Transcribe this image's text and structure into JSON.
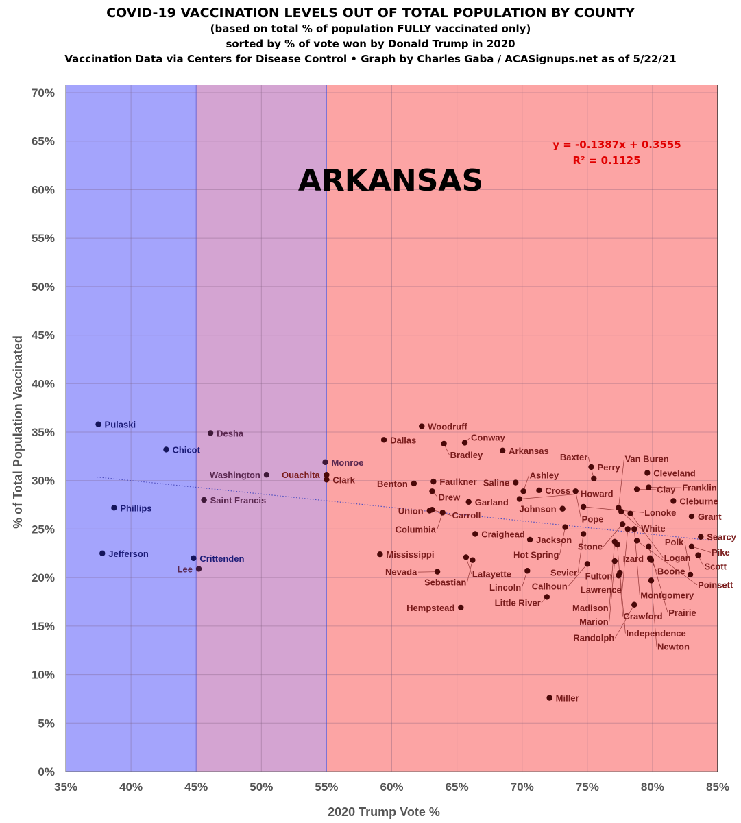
{
  "chart_data": {
    "type": "scatter",
    "title": "COVID-19 VACCINATION LEVELS OUT OF TOTAL POPULATION BY COUNTY",
    "subtitle_lines": [
      "(based on total % of population FULLY vaccinated only)",
      "sorted by % of vote won by Donald Trump in 2020",
      "Vaccination Data via Centers for Disease Control • Graph by Charles Gaba / ACASignups.net as of 5/22/21"
    ],
    "annotation": "ARKANSAS",
    "trendline": {
      "equation": "y = -0.1387x + 0.3555",
      "r2": "R² = 0.1125",
      "slope": -0.1387,
      "intercept": 0.3555,
      "style": "dotted"
    },
    "xlabel": "2020 Trump Vote %",
    "ylabel": "% of Total Population Vaccinated",
    "xlim": [
      35,
      85
    ],
    "ylim": [
      0,
      70
    ],
    "xticks": [
      "35%",
      "40%",
      "45%",
      "50%",
      "55%",
      "60%",
      "65%",
      "70%",
      "75%",
      "80%",
      "85%"
    ],
    "yticks": [
      "0%",
      "5%",
      "10%",
      "15%",
      "20%",
      "25%",
      "30%",
      "35%",
      "40%",
      "45%",
      "50%",
      "55%",
      "60%",
      "65%",
      "70%"
    ],
    "grid": true,
    "bands": [
      {
        "from": 35,
        "to": 45,
        "color": "#a4a4fc"
      },
      {
        "from": 45,
        "to": 55,
        "color": "#d4a4d2"
      },
      {
        "from": 55,
        "to": 85,
        "color": "#fca4a4"
      }
    ],
    "colors": {
      "blue_label": "#1c1c78",
      "purple_label": "#5a2850",
      "red_label": "#7a1c1c",
      "equation": "#e00000"
    },
    "points": [
      {
        "name": "Pulaski",
        "x": 37.5,
        "y": 35.8
      },
      {
        "name": "Chicot",
        "x": 42.7,
        "y": 33.2
      },
      {
        "name": "Desha",
        "x": 46.1,
        "y": 34.9
      },
      {
        "name": "Phillips",
        "x": 38.7,
        "y": 27.2
      },
      {
        "name": "Jefferson",
        "x": 37.8,
        "y": 22.5
      },
      {
        "name": "Saint Francis",
        "x": 45.6,
        "y": 28.0
      },
      {
        "name": "Crittenden",
        "x": 44.8,
        "y": 22.0
      },
      {
        "name": "Lee",
        "x": 45.2,
        "y": 20.9
      },
      {
        "name": "Washington",
        "x": 50.4,
        "y": 30.6
      },
      {
        "name": "Monroe",
        "x": 54.9,
        "y": 31.9
      },
      {
        "name": "Ouachita",
        "x": 55.0,
        "y": 30.6
      },
      {
        "name": "Clark",
        "x": 55.0,
        "y": 30.1
      },
      {
        "name": "Woodruff",
        "x": 62.3,
        "y": 35.6
      },
      {
        "name": "Dallas",
        "x": 59.4,
        "y": 34.2
      },
      {
        "name": "Bradley",
        "x": 64.0,
        "y": 33.8
      },
      {
        "name": "Conway",
        "x": 65.6,
        "y": 33.9
      },
      {
        "name": "Arkansas",
        "x": 68.5,
        "y": 33.1
      },
      {
        "name": "Benton",
        "x": 61.7,
        "y": 29.7
      },
      {
        "name": "Faulkner",
        "x": 63.2,
        "y": 29.9
      },
      {
        "name": "Drew",
        "x": 63.1,
        "y": 28.9
      },
      {
        "name": "Garland",
        "x": 65.9,
        "y": 27.8
      },
      {
        "name": "Union",
        "x": 62.9,
        "y": 26.9
      },
      {
        "name": "Carroll",
        "x": 63.1,
        "y": 27.0
      },
      {
        "name": "Columbia",
        "x": 63.9,
        "y": 26.7
      },
      {
        "name": "Craighead",
        "x": 66.4,
        "y": 24.5
      },
      {
        "name": "Jackson",
        "x": 70.6,
        "y": 23.9
      },
      {
        "name": "Saline",
        "x": 69.5,
        "y": 29.8
      },
      {
        "name": "Ashley",
        "x": 70.1,
        "y": 28.9
      },
      {
        "name": "Cross",
        "x": 71.3,
        "y": 29.0
      },
      {
        "name": "Howard",
        "x": 69.8,
        "y": 28.1
      },
      {
        "name": "Johnson",
        "x": 73.1,
        "y": 27.1
      },
      {
        "name": "Pope",
        "x": 74.1,
        "y": 28.9
      },
      {
        "name": "Perry",
        "x": 75.3,
        "y": 31.4
      },
      {
        "name": "Baxter",
        "x": 75.5,
        "y": 30.2
      },
      {
        "name": "Cleveland",
        "x": 79.6,
        "y": 30.8
      },
      {
        "name": "Clay",
        "x": 78.8,
        "y": 29.1
      },
      {
        "name": "Franklin",
        "x": 79.7,
        "y": 29.3
      },
      {
        "name": "Cleburne",
        "x": 81.6,
        "y": 27.9
      },
      {
        "name": "Grant",
        "x": 83.0,
        "y": 26.3
      },
      {
        "name": "Lonoke",
        "x": 74.7,
        "y": 27.3
      },
      {
        "name": "Van Buren",
        "x": 77.4,
        "y": 27.2
      },
      {
        "name": "White",
        "x": 77.6,
        "y": 26.8
      },
      {
        "name": "Logan",
        "x": 78.3,
        "y": 26.6
      },
      {
        "name": "Hot Spring",
        "x": 73.3,
        "y": 25.2
      },
      {
        "name": "Sevier",
        "x": 74.7,
        "y": 24.5
      },
      {
        "name": "Stone",
        "x": 77.7,
        "y": 25.5
      },
      {
        "name": "Lawrence",
        "x": 78.1,
        "y": 25.0
      },
      {
        "name": "Montgomery",
        "x": 78.6,
        "y": 25.0
      },
      {
        "name": "Searcy",
        "x": 83.7,
        "y": 24.2
      },
      {
        "name": "Pike",
        "x": 83.0,
        "y": 23.2
      },
      {
        "name": "Scott",
        "x": 83.5,
        "y": 22.3
      },
      {
        "name": "Madison",
        "x": 77.1,
        "y": 23.7
      },
      {
        "name": "Crawford",
        "x": 77.3,
        "y": 23.4
      },
      {
        "name": "Poinsett",
        "x": 78.8,
        "y": 23.8
      },
      {
        "name": "Prairie",
        "x": 79.7,
        "y": 23.2
      },
      {
        "name": "Calhoun",
        "x": 75.0,
        "y": 21.4
      },
      {
        "name": "Marion",
        "x": 77.1,
        "y": 21.7
      },
      {
        "name": "Izard",
        "x": 79.8,
        "y": 22.0
      },
      {
        "name": "Boone",
        "x": 79.9,
        "y": 21.8
      },
      {
        "name": "Independence",
        "x": 77.5,
        "y": 20.5
      },
      {
        "name": "Fulton",
        "x": 77.4,
        "y": 20.2
      },
      {
        "name": "Polk",
        "x": 82.9,
        "y": 20.3
      },
      {
        "name": "Newton",
        "x": 79.9,
        "y": 19.7
      },
      {
        "name": "Mississippi",
        "x": 59.1,
        "y": 22.4
      },
      {
        "name": "Lafayette",
        "x": 65.7,
        "y": 22.1
      },
      {
        "name": "Sebastian",
        "x": 66.2,
        "y": 21.8
      },
      {
        "name": "Nevada",
        "x": 63.5,
        "y": 20.6
      },
      {
        "name": "Lincoln",
        "x": 70.4,
        "y": 20.7
      },
      {
        "name": "Little River",
        "x": 71.9,
        "y": 18.0
      },
      {
        "name": "Hempstead",
        "x": 65.3,
        "y": 16.9
      },
      {
        "name": "Randolph",
        "x": 78.6,
        "y": 17.2
      },
      {
        "name": "Miller",
        "x": 72.1,
        "y": 7.6
      }
    ]
  }
}
